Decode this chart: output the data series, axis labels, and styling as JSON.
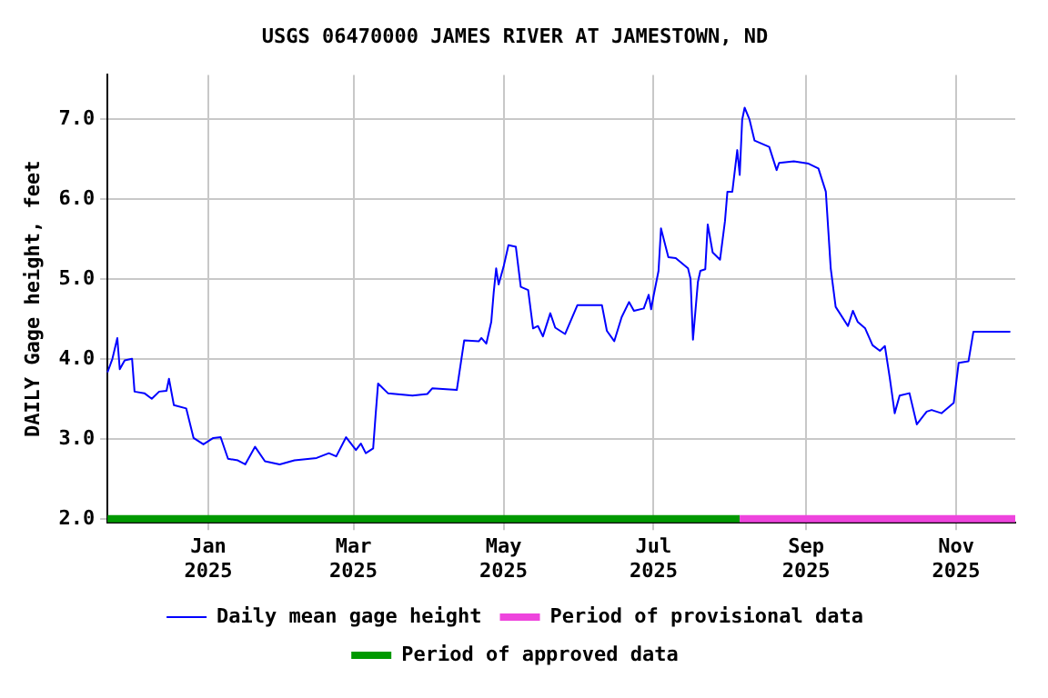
{
  "chart_data": {
    "type": "line",
    "title": "USGS 06470000 JAMES RIVER AT JAMESTOWN, ND",
    "ylabel": "DAILY Gage height, feet",
    "xlim": [
      "2024-11-21",
      "2025-11-25"
    ],
    "ylim": [
      1.95,
      7.55
    ],
    "xticks": [
      {
        "value": "2025-01-01",
        "label": "Jan\n2025"
      },
      {
        "value": "2025-03-01",
        "label": "Mar\n2025"
      },
      {
        "value": "2025-05-01",
        "label": "May\n2025"
      },
      {
        "value": "2025-07-01",
        "label": "Jul\n2025"
      },
      {
        "value": "2025-09-01",
        "label": "Sep\n2025"
      },
      {
        "value": "2025-11-01",
        "label": "Nov\n2025"
      }
    ],
    "yticks": [
      {
        "value": 2,
        "label": "2.0"
      },
      {
        "value": 3,
        "label": "3.0"
      },
      {
        "value": 4,
        "label": "4.0"
      },
      {
        "value": 5,
        "label": "5.0"
      },
      {
        "value": 6,
        "label": "6.0"
      },
      {
        "value": 7,
        "label": "7.0"
      }
    ],
    "grid": true,
    "legend": "bottom",
    "marker": "none",
    "line_style": "solid",
    "series": [
      {
        "name": "Daily mean gage height",
        "color": "#0000ff",
        "x": [
          "2024-11-21",
          "2024-11-23",
          "2024-11-25",
          "2024-11-26",
          "2024-11-28",
          "2024-12-01",
          "2024-12-02",
          "2024-12-06",
          "2024-12-09",
          "2024-12-12",
          "2024-12-15",
          "2024-12-16",
          "2024-12-18",
          "2024-12-23",
          "2024-12-26",
          "2024-12-30",
          "2025-01-03",
          "2025-01-06",
          "2025-01-09",
          "2025-01-13",
          "2025-01-16",
          "2025-01-20",
          "2025-01-24",
          "2025-01-30",
          "2025-02-05",
          "2025-02-14",
          "2025-02-19",
          "2025-02-22",
          "2025-02-26",
          "2025-03-02",
          "2025-03-04",
          "2025-03-06",
          "2025-03-09",
          "2025-03-10",
          "2025-03-11",
          "2025-03-15",
          "2025-03-25",
          "2025-03-31",
          "2025-04-02",
          "2025-04-12",
          "2025-04-15",
          "2025-04-21",
          "2025-04-22",
          "2025-04-24",
          "2025-04-26",
          "2025-04-27",
          "2025-04-28",
          "2025-04-29",
          "2025-05-01",
          "2025-05-03",
          "2025-05-06",
          "2025-05-08",
          "2025-05-11",
          "2025-05-13",
          "2025-05-15",
          "2025-05-17",
          "2025-05-20",
          "2025-05-22",
          "2025-05-26",
          "2025-05-31",
          "2025-06-10",
          "2025-06-12",
          "2025-06-15",
          "2025-06-18",
          "2025-06-21",
          "2025-06-23",
          "2025-06-27",
          "2025-06-29",
          "2025-06-30",
          "2025-07-01",
          "2025-07-03",
          "2025-07-04",
          "2025-07-07",
          "2025-07-10",
          "2025-07-15",
          "2025-07-16",
          "2025-07-17",
          "2025-07-19",
          "2025-07-20",
          "2025-07-22",
          "2025-07-23",
          "2025-07-25",
          "2025-07-28",
          "2025-07-30",
          "2025-07-31",
          "2025-08-02",
          "2025-08-04",
          "2025-08-05",
          "2025-08-06",
          "2025-08-07",
          "2025-08-09",
          "2025-08-11",
          "2025-08-17",
          "2025-08-20",
          "2025-08-21",
          "2025-08-27",
          "2025-09-02",
          "2025-09-06",
          "2025-09-09",
          "2025-09-11",
          "2025-09-13",
          "2025-09-18",
          "2025-09-20",
          "2025-09-22",
          "2025-09-25",
          "2025-09-28",
          "2025-10-01",
          "2025-10-03",
          "2025-10-05",
          "2025-10-07",
          "2025-10-09",
          "2025-10-13",
          "2025-10-16",
          "2025-10-20",
          "2025-10-22",
          "2025-10-26",
          "2025-10-31",
          "2025-11-02",
          "2025-11-06",
          "2025-11-08",
          "2025-11-23"
        ],
        "values": [
          3.83,
          4.0,
          4.26,
          3.87,
          3.98,
          4.0,
          3.59,
          3.57,
          3.5,
          3.59,
          3.6,
          3.75,
          3.42,
          3.38,
          3.01,
          2.93,
          3.01,
          3.02,
          2.75,
          2.73,
          2.68,
          2.9,
          2.72,
          2.68,
          2.73,
          2.76,
          2.82,
          2.78,
          3.02,
          2.86,
          2.94,
          2.82,
          2.88,
          3.3,
          3.69,
          3.57,
          3.54,
          3.56,
          3.63,
          3.61,
          4.23,
          4.22,
          4.26,
          4.19,
          4.46,
          4.83,
          5.13,
          4.93,
          5.15,
          5.42,
          5.4,
          4.9,
          4.86,
          4.38,
          4.41,
          4.28,
          4.57,
          4.39,
          4.31,
          4.67,
          4.67,
          4.35,
          4.22,
          4.52,
          4.71,
          4.6,
          4.63,
          4.8,
          4.62,
          4.79,
          5.1,
          5.63,
          5.27,
          5.26,
          5.13,
          5.0,
          4.24,
          4.96,
          5.1,
          5.12,
          5.68,
          5.33,
          5.24,
          5.72,
          6.09,
          6.09,
          6.61,
          6.3,
          6.99,
          7.14,
          6.99,
          6.73,
          6.65,
          6.36,
          6.45,
          6.47,
          6.44,
          6.38,
          6.09,
          5.13,
          4.65,
          4.41,
          4.6,
          4.46,
          4.38,
          4.17,
          4.1,
          4.16,
          3.76,
          3.32,
          3.54,
          3.57,
          3.18,
          3.34,
          3.36,
          3.32,
          3.45,
          3.95,
          3.97,
          4.34,
          4.34
        ]
      },
      {
        "name": "Period of provisional data",
        "color": "#ee44dd",
        "x": [
          "2025-08-05",
          "2025-11-25"
        ],
        "values": [
          2,
          2
        ]
      },
      {
        "name": "Period of approved data",
        "color": "#009900",
        "x": [
          "2024-11-21",
          "2025-08-05"
        ],
        "values": [
          2,
          2
        ]
      }
    ]
  }
}
